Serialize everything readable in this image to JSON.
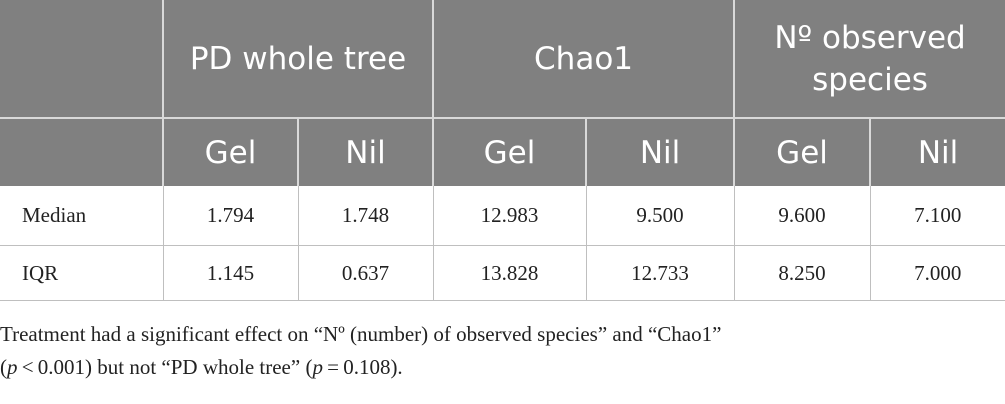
{
  "table": {
    "groups": [
      "",
      "PD whole tree",
      "Chao1",
      "Nº observed species"
    ],
    "subheaders": [
      "Gel",
      "Nil",
      "Gel",
      "Nil",
      "Gel",
      "Nil"
    ],
    "rows": [
      {
        "label": "Median",
        "values": [
          "1.794",
          "1.748",
          "12.983",
          "9.500",
          "9.600",
          "7.100"
        ]
      },
      {
        "label": "IQR",
        "values": [
          "1.145",
          "0.637",
          "13.828",
          "12.733",
          "8.250",
          "7.000"
        ]
      }
    ]
  },
  "footnote": {
    "line1": "Treatment had a significant effect on “Nº (number) of observed species” and “Chao1”",
    "p1_symbol": "p",
    "p1_rest": " < 0.001) but not “PD whole tree” (",
    "p2_symbol": "p",
    "p2_rest": " = 0.108)."
  }
}
